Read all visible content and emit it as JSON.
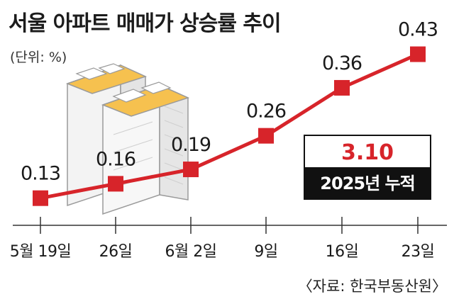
{
  "title": "서울 아파트 매매가 상승률 추이",
  "unit_label": "(단위: %)",
  "source": "〈자료: 한국부동산원〉",
  "total": {
    "value": "3.10",
    "label": "2025년 누적"
  },
  "colors": {
    "line": "#d7242a",
    "marker": "#d7242a",
    "box_dark": "#111111"
  },
  "chart_data": {
    "type": "line",
    "categories": [
      "5월 19일",
      "26일",
      "6월 2일",
      "9일",
      "16일",
      "23일"
    ],
    "series": [
      {
        "values": [
          0.13,
          0.16,
          0.19,
          0.26,
          0.36,
          0.43
        ]
      }
    ],
    "data_labels": [
      "0.13",
      "0.16",
      "0.19",
      "0.26",
      "0.36",
      "0.43"
    ],
    "ylim": [
      0.1,
      0.45
    ],
    "grid": false,
    "legend": "none"
  }
}
